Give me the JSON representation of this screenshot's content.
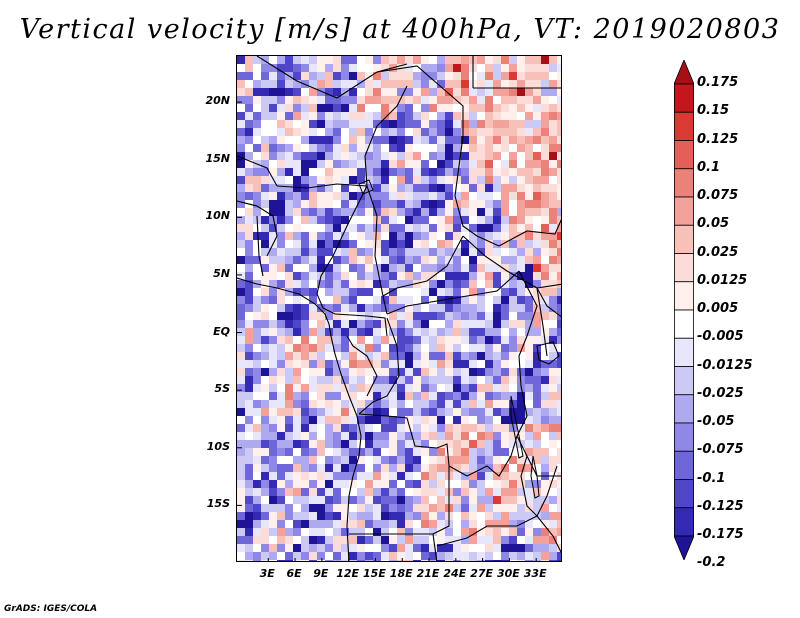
{
  "title": "Vertical velocity [m/s] at 400hPa, VT: 2019020803",
  "credit": "GrADS: IGES/COLA",
  "map": {
    "region": "Central Africa",
    "lat_range": [
      -20,
      24
    ],
    "lon_range": [
      -0.5,
      36
    ],
    "lat_labels": [
      {
        "lat": 20,
        "label": "20N"
      },
      {
        "lat": 15,
        "label": "15N"
      },
      {
        "lat": 10,
        "label": "10N"
      },
      {
        "lat": 5,
        "label": "5N"
      },
      {
        "lat": 0,
        "label": "EQ"
      },
      {
        "lat": -5,
        "label": "5S"
      },
      {
        "lat": -10,
        "label": "10S"
      },
      {
        "lat": -15,
        "label": "15S"
      }
    ],
    "lon_labels": [
      {
        "lon": 3,
        "label": "3E"
      },
      {
        "lon": 6,
        "label": "6E"
      },
      {
        "lon": 9,
        "label": "9E"
      },
      {
        "lon": 12,
        "label": "12E"
      },
      {
        "lon": 15,
        "label": "15E"
      },
      {
        "lon": 18,
        "label": "18E"
      },
      {
        "lon": 21,
        "label": "21E"
      },
      {
        "lon": 24,
        "label": "24E"
      },
      {
        "lon": 27,
        "label": "27E"
      },
      {
        "lon": 30,
        "label": "30E"
      },
      {
        "lon": 33,
        "label": "33E"
      }
    ],
    "colors": {
      "ocean_base": "#c9c6f4",
      "land_base": "#b8b3f0"
    }
  },
  "colorbar": {
    "labels": [
      "0.175",
      "0.15",
      "0.125",
      "0.1",
      "0.075",
      "0.05",
      "0.025",
      "0.0125",
      "0.005",
      "-0.005",
      "-0.0125",
      "-0.025",
      "-0.05",
      "-0.075",
      "-0.1",
      "-0.125",
      "-0.175",
      "-0.2"
    ],
    "colors": [
      "#a50f15",
      "#c4161c",
      "#d93a34",
      "#e35f57",
      "#ea8279",
      "#f2a29b",
      "#f7c0b9",
      "#fbdcd8",
      "#fff0ee",
      "#ffffff",
      "#e8e6fb",
      "#cdc9f5",
      "#afaaf0",
      "#8f88e6",
      "#6f67d9",
      "#5047c8",
      "#3329b3",
      "#1f1497"
    ]
  }
}
